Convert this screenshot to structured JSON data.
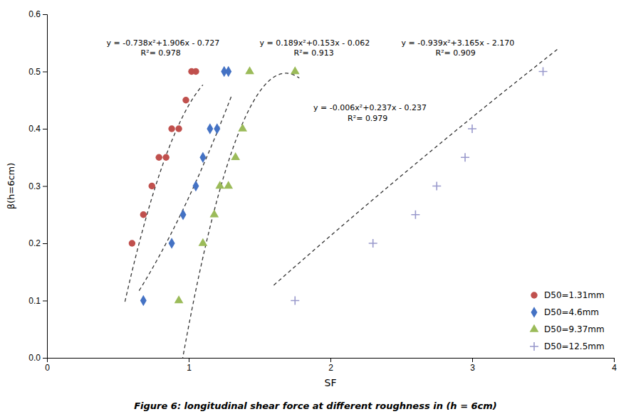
{
  "chart_data": {
    "type": "scatter",
    "title": "Figure 6: longitudinal shear force at different roughness in (h = 6cm)",
    "x_label": "SF",
    "y_label": "β(h=6cm)",
    "xlim": [
      0,
      4
    ],
    "ylim": [
      0,
      0.6
    ],
    "xticks": [
      0,
      1,
      2,
      3,
      4
    ],
    "yticks": [
      {
        "value": 0,
        "label": "0.0"
      },
      0.1,
      0.2,
      0.3,
      0.4,
      0.5,
      0.6
    ],
    "legend": "lower right",
    "series": [
      {
        "name": "D50=1.31mm",
        "color": "#c0504d",
        "marker": "circle",
        "x": [
          0.6,
          0.68,
          0.74,
          0.79,
          0.84,
          0.88,
          0.93,
          0.98,
          1.02,
          1.05
        ],
        "values": [
          0.2,
          0.25,
          0.3,
          0.35,
          0.35,
          0.4,
          0.4,
          0.45,
          0.5,
          0.5
        ],
        "fit_x_range": [
          0.55,
          1.1
        ],
        "fit_coeffs": [
          -0.738,
          1.906,
          -0.727
        ],
        "annotation": [
          "y = -0.738x²+1.906x - 0.727",
          "R²= 0.978"
        ]
      },
      {
        "name": "D50=4.6mm",
        "color": "#4472c4",
        "marker": "diamond",
        "x": [
          0.68,
          0.88,
          0.96,
          1.05,
          1.1,
          1.15,
          1.2,
          1.25,
          1.28
        ],
        "values": [
          0.1,
          0.2,
          0.25,
          0.3,
          0.35,
          0.4,
          0.4,
          0.5,
          0.5
        ],
        "fit_x_range": [
          0.65,
          1.3
        ],
        "fit_coeffs": [
          0.189,
          0.153,
          -0.062
        ],
        "annotation": [
          "y = 0.189x²+0.153x - 0.062",
          "R²= 0.913"
        ]
      },
      {
        "name": "D50=9.37mm",
        "color": "#9bbb59",
        "marker": "triangle",
        "x": [
          0.93,
          1.1,
          1.18,
          1.22,
          1.28,
          1.33,
          1.38,
          1.43,
          1.75
        ],
        "values": [
          0.1,
          0.2,
          0.25,
          0.3,
          0.3,
          0.35,
          0.4,
          0.5,
          0.5
        ],
        "fit_x_range": [
          0.9,
          1.78
        ],
        "fit_coeffs": [
          -0.939,
          3.165,
          -2.17
        ],
        "annotation": [
          "y = -0.939x²+3.165x - 2.170",
          "R²= 0.909"
        ]
      },
      {
        "name": "D50=12.5mm",
        "color": "#9999cc",
        "marker": "plus",
        "x": [
          1.75,
          2.3,
          2.6,
          2.75,
          2.95,
          3.0,
          3.5
        ],
        "values": [
          0.1,
          0.2,
          0.25,
          0.3,
          0.35,
          0.4,
          0.5
        ],
        "fit_x_range": [
          1.6,
          3.6
        ],
        "fit_coeffs": [
          -0.006,
          0.237,
          -0.237
        ],
        "annotation": [
          "y = -0.006x²+0.237x - 0.237",
          "R²= 0.979"
        ]
      }
    ]
  }
}
